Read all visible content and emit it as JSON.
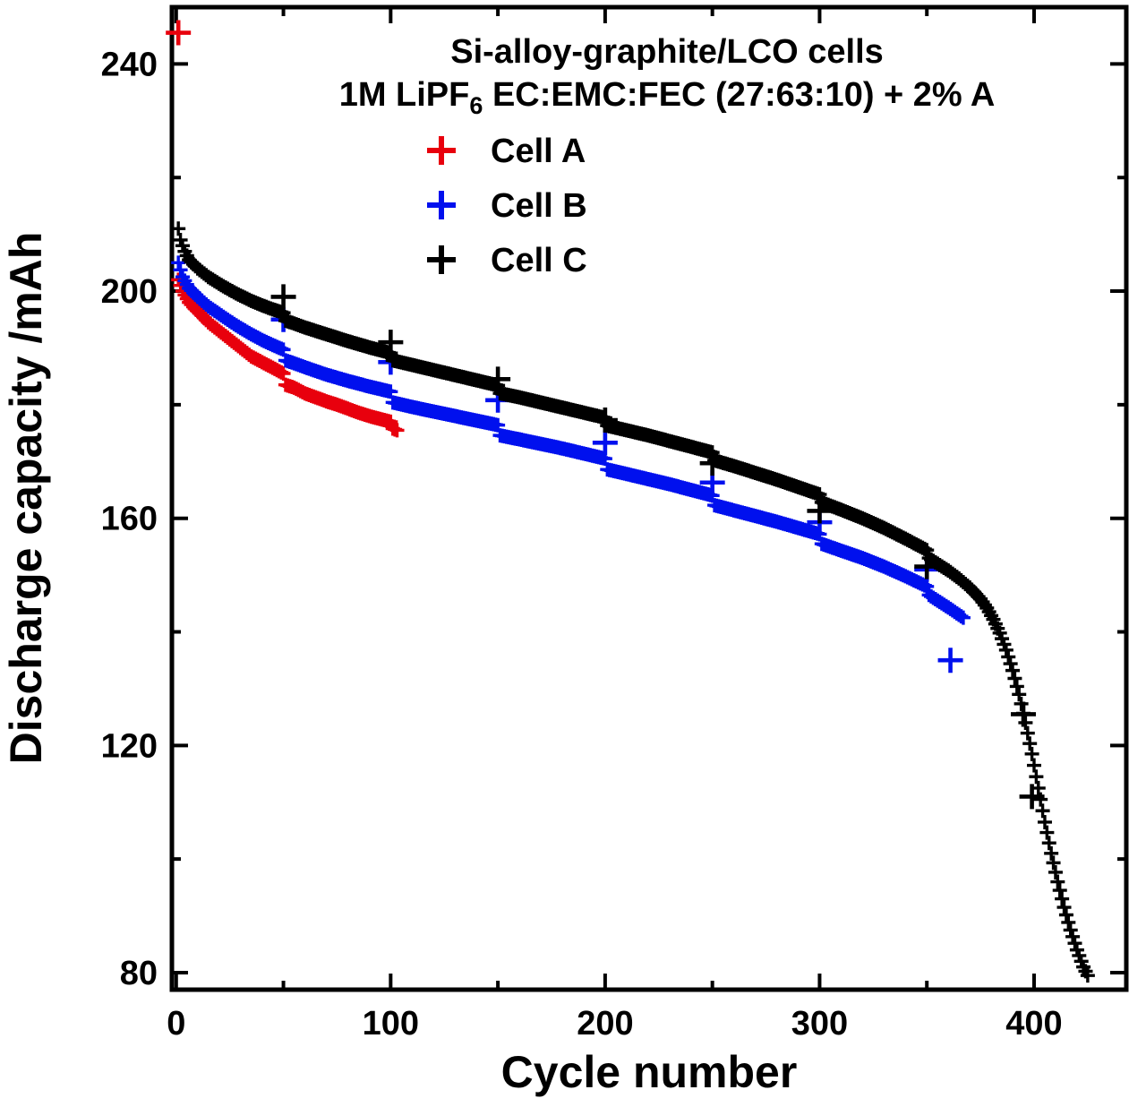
{
  "title": {
    "line1": "Si-alloy-graphite/LCO cells",
    "line2_pre": "1M LiPF",
    "line2_sub": "6",
    "line2_post": " EC:EMC:FEC (27:63:10) + 2% A"
  },
  "legend": {
    "items": [
      {
        "label": "Cell A",
        "color": "#e8000d"
      },
      {
        "label": "Cell B",
        "color": "#0010ee"
      },
      {
        "label": "Cell C",
        "color": "#000000"
      }
    ]
  },
  "axes": {
    "xlabel": "Cycle number",
    "ylabel": "Discharge capacity /mAh",
    "x_ticks": [
      0,
      100,
      200,
      300,
      400
    ],
    "x_minor_ticks": [
      50,
      150,
      250,
      350
    ],
    "y_ticks": [
      80,
      120,
      160,
      200,
      240
    ],
    "y_minor_ticks": [
      100,
      140,
      180,
      220
    ],
    "xlim": [
      -2,
      443
    ],
    "ylim": [
      77,
      250
    ]
  },
  "chart_data": {
    "type": "scatter",
    "title": "Si-alloy-graphite/LCO cells — 1M LiPF6 EC:EMC:FEC (27:63:10) + 2% A",
    "xlabel": "Cycle number",
    "ylabel": "Discharge capacity /mAh",
    "xlim": [
      -2,
      443
    ],
    "ylim": [
      77,
      250
    ],
    "marker": "plus",
    "series": [
      {
        "name": "Cell A",
        "color": "#e8000d",
        "curve": [
          [
            1,
            202
          ],
          [
            3,
            200
          ],
          [
            6,
            198
          ],
          [
            10,
            196.5
          ],
          [
            15,
            194.5
          ],
          [
            20,
            193
          ],
          [
            25,
            191.5
          ],
          [
            30,
            190
          ],
          [
            35,
            188.5
          ],
          [
            40,
            187.5
          ],
          [
            45,
            186.5
          ],
          [
            50,
            185.5
          ],
          [
            51,
            183.5
          ],
          [
            55,
            183
          ],
          [
            60,
            182
          ],
          [
            65,
            181.3
          ],
          [
            70,
            180.6
          ],
          [
            75,
            180
          ],
          [
            80,
            179.3
          ],
          [
            85,
            178.6
          ],
          [
            90,
            178
          ],
          [
            95,
            177.5
          ],
          [
            100,
            177
          ],
          [
            101,
            175.8
          ],
          [
            103,
            175.5
          ]
        ],
        "checkups": [
          [
            1,
            245.5
          ]
        ]
      },
      {
        "name": "Cell B",
        "color": "#0010ee",
        "curve": [
          [
            1,
            205
          ],
          [
            3,
            202.5
          ],
          [
            6,
            200.5
          ],
          [
            10,
            199
          ],
          [
            15,
            197.3
          ],
          [
            20,
            196
          ],
          [
            25,
            194.7
          ],
          [
            30,
            193.5
          ],
          [
            35,
            192.4
          ],
          [
            40,
            191.4
          ],
          [
            45,
            190.5
          ],
          [
            50,
            189.7
          ],
          [
            51,
            187.8
          ],
          [
            55,
            187.3
          ],
          [
            60,
            186.6
          ],
          [
            70,
            185.3
          ],
          [
            80,
            184.2
          ],
          [
            90,
            183.2
          ],
          [
            100,
            182.3
          ],
          [
            101,
            180.4
          ],
          [
            110,
            179.6
          ],
          [
            120,
            178.8
          ],
          [
            130,
            178
          ],
          [
            140,
            177.2
          ],
          [
            150,
            176.4
          ],
          [
            151,
            174.6
          ],
          [
            160,
            173.9
          ],
          [
            170,
            173.1
          ],
          [
            180,
            172.3
          ],
          [
            190,
            171.4
          ],
          [
            200,
            170.5
          ],
          [
            201,
            168.6
          ],
          [
            210,
            167.8
          ],
          [
            220,
            166.9
          ],
          [
            230,
            166
          ],
          [
            240,
            165
          ],
          [
            250,
            164
          ],
          [
            251,
            162.3
          ],
          [
            260,
            161.4
          ],
          [
            270,
            160.4
          ],
          [
            280,
            159.4
          ],
          [
            290,
            158.3
          ],
          [
            300,
            157.2
          ],
          [
            301,
            155.5
          ],
          [
            310,
            154.3
          ],
          [
            320,
            153
          ],
          [
            330,
            151.5
          ],
          [
            340,
            149.8
          ],
          [
            350,
            148
          ],
          [
            351,
            146.5
          ],
          [
            355,
            145.5
          ],
          [
            360,
            144.3
          ],
          [
            365,
            143
          ],
          [
            367,
            142.5
          ]
        ],
        "checkups": [
          [
            50,
            195
          ],
          [
            100,
            187.5
          ],
          [
            150,
            180.8
          ],
          [
            200,
            173.3
          ],
          [
            250,
            166.3
          ],
          [
            300,
            159.3
          ],
          [
            350,
            151
          ],
          [
            361,
            135
          ]
        ]
      },
      {
        "name": "Cell C",
        "color": "#000000",
        "curve": [
          [
            1,
            211
          ],
          [
            2,
            209
          ],
          [
            4,
            207
          ],
          [
            6,
            205.5
          ],
          [
            10,
            204
          ],
          [
            15,
            202.5
          ],
          [
            20,
            201.3
          ],
          [
            25,
            200.2
          ],
          [
            30,
            199.2
          ],
          [
            35,
            198.3
          ],
          [
            40,
            197.5
          ],
          [
            45,
            196.8
          ],
          [
            50,
            196.2
          ],
          [
            51,
            194.8
          ],
          [
            55,
            194.3
          ],
          [
            60,
            193.6
          ],
          [
            70,
            192.4
          ],
          [
            80,
            191.2
          ],
          [
            90,
            190.1
          ],
          [
            100,
            189.1
          ],
          [
            101,
            187.8
          ],
          [
            110,
            187
          ],
          [
            120,
            186.1
          ],
          [
            130,
            185.2
          ],
          [
            140,
            184.3
          ],
          [
            150,
            183.4
          ],
          [
            151,
            182
          ],
          [
            160,
            181.3
          ],
          [
            170,
            180.4
          ],
          [
            180,
            179.5
          ],
          [
            190,
            178.6
          ],
          [
            200,
            177.7
          ],
          [
            201,
            176.3
          ],
          [
            210,
            175.5
          ],
          [
            220,
            174.6
          ],
          [
            230,
            173.6
          ],
          [
            240,
            172.6
          ],
          [
            250,
            171.6
          ],
          [
            251,
            170.2
          ],
          [
            260,
            169.2
          ],
          [
            270,
            168
          ],
          [
            280,
            166.8
          ],
          [
            290,
            165.5
          ],
          [
            300,
            164.2
          ],
          [
            301,
            162.8
          ],
          [
            310,
            161.5
          ],
          [
            320,
            160
          ],
          [
            330,
            158.3
          ],
          [
            340,
            156.4
          ],
          [
            350,
            154.4
          ],
          [
            351,
            153
          ],
          [
            355,
            152
          ],
          [
            360,
            150.8
          ],
          [
            365,
            149.4
          ],
          [
            370,
            147.8
          ],
          [
            375,
            145.8
          ],
          [
            378,
            144.2
          ],
          [
            381,
            142.2
          ],
          [
            384,
            139.8
          ],
          [
            387,
            136.8
          ],
          [
            390,
            133.2
          ],
          [
            393,
            129
          ],
          [
            396,
            124
          ],
          [
            399,
            118.5
          ],
          [
            402,
            112.5
          ],
          [
            405,
            106.5
          ],
          [
            408,
            101
          ],
          [
            411,
            96
          ],
          [
            414,
            91.5
          ],
          [
            417,
            87.5
          ],
          [
            420,
            84
          ],
          [
            423,
            81
          ],
          [
            425,
            79.5
          ]
        ],
        "checkups": [
          [
            50,
            199
          ],
          [
            100,
            191
          ],
          [
            150,
            184.5
          ],
          [
            200,
            177.3
          ],
          [
            250,
            169.7
          ],
          [
            300,
            161.3
          ],
          [
            350,
            151.5
          ],
          [
            395,
            125.5
          ],
          [
            399,
            111
          ]
        ]
      }
    ]
  }
}
